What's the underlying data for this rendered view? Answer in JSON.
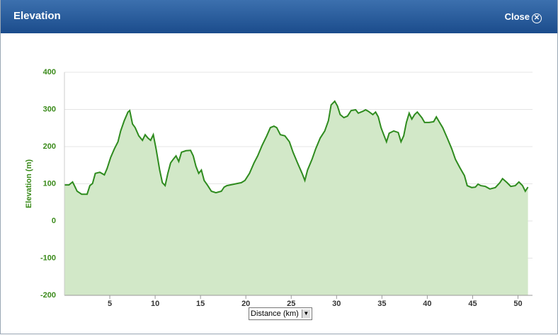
{
  "dialog": {
    "title": "Elevation",
    "close": "Close"
  },
  "chart_data": {
    "type": "area",
    "x_label": "Distance (km)",
    "y_label": "Elevation (m)",
    "color": "#2e8b1e",
    "fill": "#d2e8c8",
    "grid": true,
    "xlim": [
      0,
      51.6
    ],
    "ylim": [
      -200,
      400
    ],
    "xticks": [
      5,
      10,
      15,
      20,
      25,
      30,
      35,
      40,
      45,
      50
    ],
    "yticks": [
      -200,
      -100,
      0,
      100,
      200,
      300,
      400
    ],
    "x": [
      0,
      0.5,
      0.9,
      1.1,
      1.4,
      1.9,
      2.5,
      2.8,
      3.1,
      3.4,
      3.9,
      4.4,
      4.7,
      5.1,
      5.5,
      5.9,
      6.2,
      6.6,
      7.0,
      7.2,
      7.5,
      7.8,
      8.2,
      8.6,
      8.9,
      9.2,
      9.5,
      9.8,
      10.1,
      10.5,
      10.8,
      11.1,
      11.4,
      11.7,
      12.0,
      12.3,
      12.6,
      12.9,
      13.4,
      13.9,
      14.2,
      14.5,
      14.8,
      15.1,
      15.4,
      15.8,
      16.2,
      16.7,
      17.3,
      17.6,
      17.9,
      18.7,
      19.5,
      19.9,
      20.4,
      20.9,
      21.3,
      21.8,
      22.3,
      22.7,
      23.1,
      23.4,
      23.8,
      24.3,
      24.8,
      25.2,
      25.7,
      26.2,
      26.5,
      26.8,
      27.3,
      27.7,
      28.2,
      28.7,
      29.1,
      29.4,
      29.8,
      30.1,
      30.4,
      30.8,
      31.2,
      31.6,
      32.1,
      32.4,
      32.9,
      33.2,
      33.5,
      34.0,
      34.3,
      34.6,
      34.9,
      35.2,
      35.5,
      35.8,
      36.3,
      36.8,
      37.1,
      37.4,
      37.7,
      38.0,
      38.3,
      38.6,
      38.9,
      39.4,
      39.7,
      40.2,
      40.7,
      41.0,
      41.3,
      41.7,
      42.2,
      42.7,
      43.1,
      43.6,
      44.1,
      44.4,
      44.9,
      45.3,
      45.6,
      45.9,
      46.4,
      46.9,
      47.5,
      48.0,
      48.3,
      48.8,
      49.2,
      49.7,
      50.1,
      50.5,
      50.8,
      51.1
    ],
    "values": [
      97,
      97,
      105,
      95,
      80,
      72,
      72,
      95,
      101,
      128,
      131,
      124,
      141,
      171,
      194,
      213,
      242,
      270,
      293,
      297,
      261,
      251,
      229,
      217,
      232,
      223,
      217,
      232,
      194,
      137,
      103,
      95,
      128,
      156,
      166,
      175,
      160,
      185,
      189,
      190,
      175,
      147,
      128,
      137,
      109,
      95,
      80,
      76,
      80,
      91,
      95,
      99,
      103,
      109,
      128,
      156,
      175,
      204,
      229,
      251,
      255,
      251,
      232,
      229,
      213,
      185,
      156,
      128,
      109,
      137,
      166,
      194,
      223,
      242,
      270,
      312,
      322,
      309,
      286,
      278,
      282,
      297,
      299,
      290,
      295,
      299,
      295,
      286,
      293,
      280,
      251,
      232,
      213,
      236,
      242,
      238,
      213,
      229,
      265,
      290,
      274,
      286,
      293,
      278,
      265,
      265,
      267,
      280,
      267,
      251,
      223,
      194,
      166,
      143,
      122,
      95,
      90,
      91,
      99,
      95,
      93,
      86,
      90,
      103,
      114,
      103,
      93,
      95,
      105,
      95,
      80,
      91
    ]
  }
}
